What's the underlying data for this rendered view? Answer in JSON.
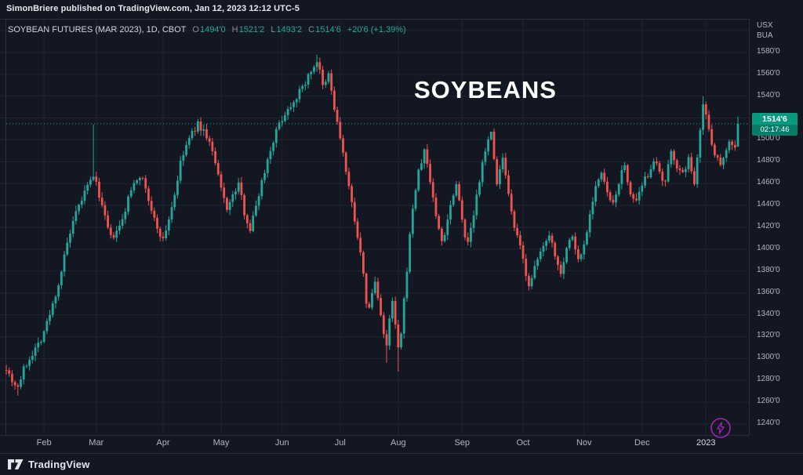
{
  "attribution": "SimonBriere published on TradingView.com, Jan 12, 2023 12:12 UTC-5",
  "legend": {
    "symbol": "SOYBEAN FUTURES (MAR 2023), 1D, CBOT",
    "o_label": "O",
    "o": "1494'0",
    "h_label": "H",
    "h": "1521'2",
    "l_label": "L",
    "l": "1493'2",
    "c_label": "C",
    "c": "1514'6",
    "change": "+20'6 (+1.39%)"
  },
  "watermark": "SOYBEANS",
  "price_axis": {
    "units": [
      "USX",
      "BUA"
    ],
    "ticks": [
      {
        "label": "1580'0",
        "value": 1580
      },
      {
        "label": "1560'0",
        "value": 1560
      },
      {
        "label": "1540'0",
        "value": 1540
      },
      {
        "label": "1520'0",
        "value": 1520
      },
      {
        "label": "1500'0",
        "value": 1500
      },
      {
        "label": "1480'0",
        "value": 1480
      },
      {
        "label": "1460'0",
        "value": 1460
      },
      {
        "label": "1440'0",
        "value": 1440
      },
      {
        "label": "1420'0",
        "value": 1420
      },
      {
        "label": "1400'0",
        "value": 1400
      },
      {
        "label": "1380'0",
        "value": 1380
      },
      {
        "label": "1360'0",
        "value": 1360
      },
      {
        "label": "1340'0",
        "value": 1340
      },
      {
        "label": "1320'0",
        "value": 1320
      },
      {
        "label": "1300'0",
        "value": 1300
      },
      {
        "label": "1280'0",
        "value": 1280
      },
      {
        "label": "1260'0",
        "value": 1260
      },
      {
        "label": "1240'0",
        "value": 1240
      }
    ],
    "badge": {
      "price": "1514'6",
      "countdown": "02:17:46"
    }
  },
  "time_axis": {
    "months": [
      {
        "label": "Feb",
        "day": 13
      },
      {
        "label": "Mar",
        "day": 31
      },
      {
        "label": "Apr",
        "day": 54
      },
      {
        "label": "May",
        "day": 74
      },
      {
        "label": "Jun",
        "day": 95
      },
      {
        "label": "Jul",
        "day": 115
      },
      {
        "label": "Aug",
        "day": 135
      },
      {
        "label": "Sep",
        "day": 157
      },
      {
        "label": "Oct",
        "day": 178
      },
      {
        "label": "Nov",
        "day": 199
      },
      {
        "label": "Dec",
        "day": 219
      },
      {
        "label": "2023",
        "day": 241,
        "highlight": true
      }
    ]
  },
  "footer": {
    "brand": "TradingView"
  },
  "colors": {
    "background": "#131722",
    "grid": "#1f2433",
    "border": "#2a2e39",
    "up": "#26a69a",
    "down": "#ef5350",
    "badge": "#089981",
    "axis_text": "#b2b5be",
    "watermark": "#ffffff",
    "boost": "#9c27b0"
  },
  "chart_data": {
    "type": "candlestick",
    "title": "SOYBEANS",
    "symbol": "SOYBEAN FUTURES (MAR 2023)",
    "interval": "1D",
    "exchange": "CBOT",
    "y_range": [
      1230,
      1610
    ],
    "gridline_step": 20,
    "total_days": 253,
    "last": {
      "open": 1494.0,
      "high": 1521.25,
      "low": 1493.25,
      "close": 1514.75,
      "change_text": "+20'6 (+1.39%)"
    },
    "price_path": [
      [
        0,
        1292
      ],
      [
        2,
        1280
      ],
      [
        4,
        1274
      ],
      [
        6,
        1290
      ],
      [
        9,
        1305
      ],
      [
        12,
        1318
      ],
      [
        15,
        1340
      ],
      [
        18,
        1368
      ],
      [
        21,
        1405
      ],
      [
        24,
        1432
      ],
      [
        27,
        1452
      ],
      [
        29,
        1462
      ],
      [
        30,
        1468
      ],
      [
        32,
        1450
      ],
      [
        34,
        1428
      ],
      [
        36,
        1410
      ],
      [
        38,
        1415
      ],
      [
        40,
        1426
      ],
      [
        42,
        1446
      ],
      [
        44,
        1462
      ],
      [
        46,
        1468
      ],
      [
        48,
        1456
      ],
      [
        50,
        1434
      ],
      [
        52,
        1420
      ],
      [
        54,
        1408
      ],
      [
        56,
        1428
      ],
      [
        58,
        1450
      ],
      [
        60,
        1478
      ],
      [
        62,
        1495
      ],
      [
        64,
        1506
      ],
      [
        66,
        1514
      ],
      [
        68,
        1508
      ],
      [
        70,
        1498
      ],
      [
        72,
        1478
      ],
      [
        74,
        1455
      ],
      [
        76,
        1438
      ],
      [
        78,
        1448
      ],
      [
        80,
        1460
      ],
      [
        82,
        1434
      ],
      [
        84,
        1418
      ],
      [
        86,
        1440
      ],
      [
        88,
        1462
      ],
      [
        90,
        1482
      ],
      [
        92,
        1500
      ],
      [
        94,
        1515
      ],
      [
        96,
        1524
      ],
      [
        98,
        1532
      ],
      [
        100,
        1540
      ],
      [
        102,
        1548
      ],
      [
        104,
        1558
      ],
      [
        106,
        1568
      ],
      [
        107,
        1572
      ],
      [
        108,
        1562
      ],
      [
        109,
        1548
      ],
      [
        110,
        1552
      ],
      [
        111,
        1560
      ],
      [
        112,
        1545
      ],
      [
        113,
        1528
      ],
      [
        114,
        1515
      ],
      [
        115,
        1502
      ],
      [
        116,
        1488
      ],
      [
        117,
        1470
      ],
      [
        118,
        1455
      ],
      [
        119,
        1442
      ],
      [
        120,
        1428
      ],
      [
        121,
        1412
      ],
      [
        122,
        1395
      ],
      [
        123,
        1375
      ],
      [
        124,
        1352
      ],
      [
        125,
        1345
      ],
      [
        126,
        1360
      ],
      [
        127,
        1370
      ],
      [
        128,
        1355
      ],
      [
        129,
        1342
      ],
      [
        130,
        1322
      ],
      [
        131,
        1310
      ],
      [
        132,
        1335
      ],
      [
        133,
        1352
      ],
      [
        134,
        1330
      ],
      [
        135,
        1308
      ],
      [
        136,
        1322
      ],
      [
        137,
        1352
      ],
      [
        138,
        1382
      ],
      [
        139,
        1412
      ],
      [
        140,
        1438
      ],
      [
        141,
        1455
      ],
      [
        142,
        1470
      ],
      [
        143,
        1480
      ],
      [
        144,
        1490
      ],
      [
        145,
        1478
      ],
      [
        146,
        1462
      ],
      [
        147,
        1448
      ],
      [
        148,
        1430
      ],
      [
        149,
        1418
      ],
      [
        150,
        1408
      ],
      [
        151,
        1415
      ],
      [
        152,
        1428
      ],
      [
        153,
        1440
      ],
      [
        154,
        1452
      ],
      [
        155,
        1460
      ],
      [
        156,
        1445
      ],
      [
        157,
        1430
      ],
      [
        158,
        1412
      ],
      [
        159,
        1405
      ],
      [
        160,
        1418
      ],
      [
        161,
        1432
      ],
      [
        162,
        1448
      ],
      [
        163,
        1460
      ],
      [
        164,
        1478
      ],
      [
        165,
        1492
      ],
      [
        166,
        1502
      ],
      [
        167,
        1505
      ],
      [
        168,
        1482
      ],
      [
        169,
        1462
      ],
      [
        170,
        1472
      ],
      [
        171,
        1482
      ],
      [
        172,
        1465
      ],
      [
        173,
        1448
      ],
      [
        174,
        1432
      ],
      [
        175,
        1420
      ],
      [
        176,
        1410
      ],
      [
        177,
        1402
      ],
      [
        178,
        1390
      ],
      [
        179,
        1378
      ],
      [
        180,
        1368
      ],
      [
        181,
        1372
      ],
      [
        182,
        1382
      ],
      [
        183,
        1390
      ],
      [
        184,
        1398
      ],
      [
        185,
        1402
      ],
      [
        186,
        1410
      ],
      [
        187,
        1415
      ],
      [
        188,
        1405
      ],
      [
        189,
        1395
      ],
      [
        190,
        1385
      ],
      [
        191,
        1380
      ],
      [
        192,
        1390
      ],
      [
        193,
        1400
      ],
      [
        194,
        1408
      ],
      [
        195,
        1412
      ],
      [
        196,
        1400
      ],
      [
        197,
        1390
      ],
      [
        198,
        1396
      ],
      [
        199,
        1404
      ],
      [
        200,
        1418
      ],
      [
        201,
        1432
      ],
      [
        202,
        1446
      ],
      [
        203,
        1458
      ],
      [
        204,
        1464
      ],
      [
        205,
        1468
      ],
      [
        206,
        1460
      ],
      [
        207,
        1452
      ],
      [
        208,
        1444
      ],
      [
        209,
        1440
      ],
      [
        210,
        1450
      ],
      [
        211,
        1462
      ],
      [
        212,
        1470
      ],
      [
        213,
        1475
      ],
      [
        214,
        1462
      ],
      [
        215,
        1452
      ],
      [
        216,
        1446
      ],
      [
        217,
        1442
      ],
      [
        218,
        1450
      ],
      [
        219,
        1456
      ],
      [
        220,
        1464
      ],
      [
        221,
        1468
      ],
      [
        222,
        1476
      ],
      [
        223,
        1482
      ],
      [
        224,
        1476
      ],
      [
        225,
        1468
      ],
      [
        226,
        1462
      ],
      [
        227,
        1460
      ],
      [
        228,
        1475
      ],
      [
        229,
        1490
      ],
      [
        230,
        1484
      ],
      [
        231,
        1476
      ],
      [
        232,
        1470
      ],
      [
        233,
        1468
      ],
      [
        234,
        1476
      ],
      [
        235,
        1482
      ],
      [
        236,
        1470
      ],
      [
        237,
        1462
      ],
      [
        238,
        1486
      ],
      [
        239,
        1512
      ],
      [
        240,
        1532
      ],
      [
        241,
        1522
      ],
      [
        242,
        1510
      ],
      [
        243,
        1498
      ],
      [
        244,
        1488
      ],
      [
        245,
        1482
      ],
      [
        246,
        1478
      ],
      [
        247,
        1486
      ],
      [
        248,
        1492
      ],
      [
        249,
        1498
      ],
      [
        250,
        1496
      ],
      [
        251,
        1494
      ],
      [
        252,
        1514.75
      ]
    ],
    "wick_overrides": {
      "4": [
        null,
        1266
      ],
      "30": [
        1514,
        null
      ],
      "107": [
        1578,
        null
      ],
      "131": [
        null,
        1296
      ],
      "135": [
        null,
        1288
      ],
      "167": [
        1507,
        null
      ],
      "240": [
        1540,
        null
      ]
    },
    "noise": 6,
    "wick": 4,
    "seed": 7
  }
}
